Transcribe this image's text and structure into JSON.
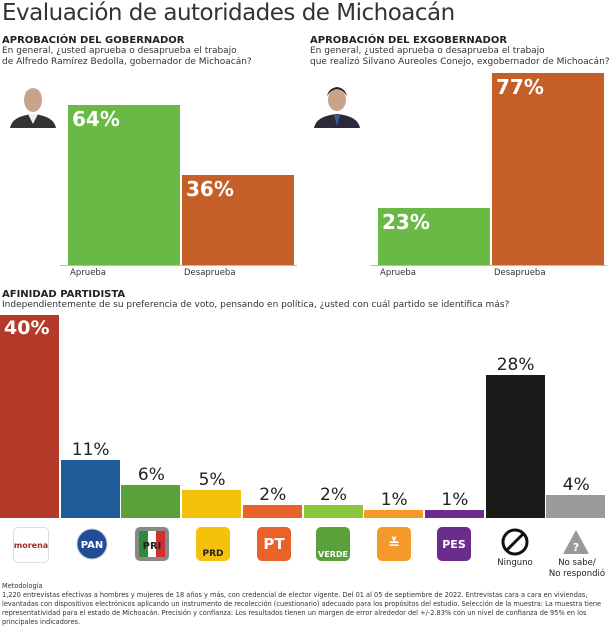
{
  "title": "Evaluación de autoridades de Michoacán",
  "chart_data": [
    {
      "type": "bar",
      "title": "APROBACIÓN DEL GOBERNADOR",
      "subtitle": [
        "En general, ¿usted aprueba o desaprueba el trabajo",
        "de Alfredo Ramírez Bedolla, gobernador de Michoacán?"
      ],
      "categories": [
        "Aprueba",
        "Desaprueba"
      ],
      "values": [
        64,
        36
      ],
      "labels": [
        "64%",
        "36%"
      ],
      "colors": [
        "#6ab845",
        "#c55f28"
      ]
    },
    {
      "type": "bar",
      "title": "APROBACIÓN DEL EXGOBERNADOR",
      "subtitle": [
        "En general, ¿usted aprueba o desaprueba el trabajo",
        "que realizó Silvano Aureoles Conejo, exgobernador de Michoacán?"
      ],
      "categories": [
        "Aprueba",
        "Desaprueba"
      ],
      "values": [
        23,
        77
      ],
      "labels": [
        "23%",
        "77%"
      ],
      "colors": [
        "#6ab845",
        "#c55f28"
      ]
    },
    {
      "type": "bar",
      "title": "AFINIDAD PARTIDISTA",
      "subtitle": [
        "Independientemente de su preferencia de voto, pensando en política, ¿usted con cuál partido se identifica más?"
      ],
      "categories": [
        "morena",
        "PAN",
        "PRI",
        "PRD",
        "PT",
        "VERDE",
        "MC",
        "PES",
        "Ninguno",
        "No sabe/ No respondió"
      ],
      "values": [
        40,
        11,
        6,
        5,
        2,
        2,
        1,
        1,
        28,
        4
      ],
      "labels": [
        "40%",
        "11%",
        "6%",
        "5%",
        "2%",
        "2%",
        "1%",
        "1%",
        "28%",
        "4%"
      ],
      "colors": [
        "#b63a2a",
        "#1f5a99",
        "#5aa13c",
        "#f4c20d",
        "#e8622a",
        "#8cc63f",
        "#f39a2a",
        "#6b2c8c",
        "#1a1a1a",
        "#9a9a9a"
      ],
      "visible_labels": {
        "Ninguno": "Ninguno",
        "nosabe1": "No sabe/",
        "nosabe2": "No respondió"
      }
    }
  ],
  "methodology": {
    "heading": "Metodología",
    "text": "1,220 entrevistas efectivas a hombres y mujeres de 18 años y más, con credencial de elector vigente. Del 01 al 05 de septiembre de 2022. Entrevistas cara a cara en viviendas, levantadas con dispositivos electrónicos aplicando un instrumento de recolección (cuestionario) adecuado para los propósitos del estudio. Selección de la muestra: La muestra tiene representatividad para el estado de Michoacán. Precisión y confianza: Los resultados tienen un margen de error alrededor del +/-2.83% con un nivel de confianza de 95% en los principales indicadores."
  }
}
